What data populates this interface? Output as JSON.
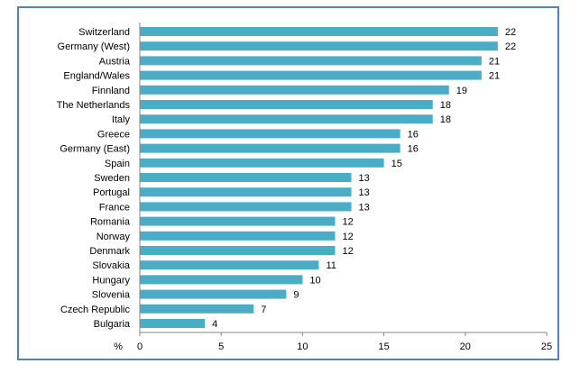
{
  "chart_data": {
    "type": "bar",
    "orientation": "horizontal",
    "categories": [
      "Switzerland",
      "Germany (West)",
      "Austria",
      "England/Wales",
      "Finnland",
      "The Netherlands",
      "Italy",
      "Greece",
      "Germany (East)",
      "Spain",
      "Sweden",
      "Portugal",
      "France",
      "Romania",
      "Norway",
      "Denmark",
      "Slovakia",
      "Hungary",
      "Slovenia",
      "Czech Republic",
      "Bulgaria"
    ],
    "values": [
      22,
      22,
      21,
      21,
      19,
      18,
      18,
      16,
      16,
      15,
      13,
      13,
      13,
      12,
      12,
      12,
      11,
      10,
      9,
      7,
      4
    ],
    "xlim": [
      0,
      25
    ],
    "xticks": [
      0,
      5,
      10,
      15,
      20,
      25
    ],
    "x_unit_label": "%",
    "data_labels": true,
    "grid": false,
    "bar_color": "#4bacc6",
    "frame_color": "#4f81bd",
    "axis_color": "#868686"
  }
}
